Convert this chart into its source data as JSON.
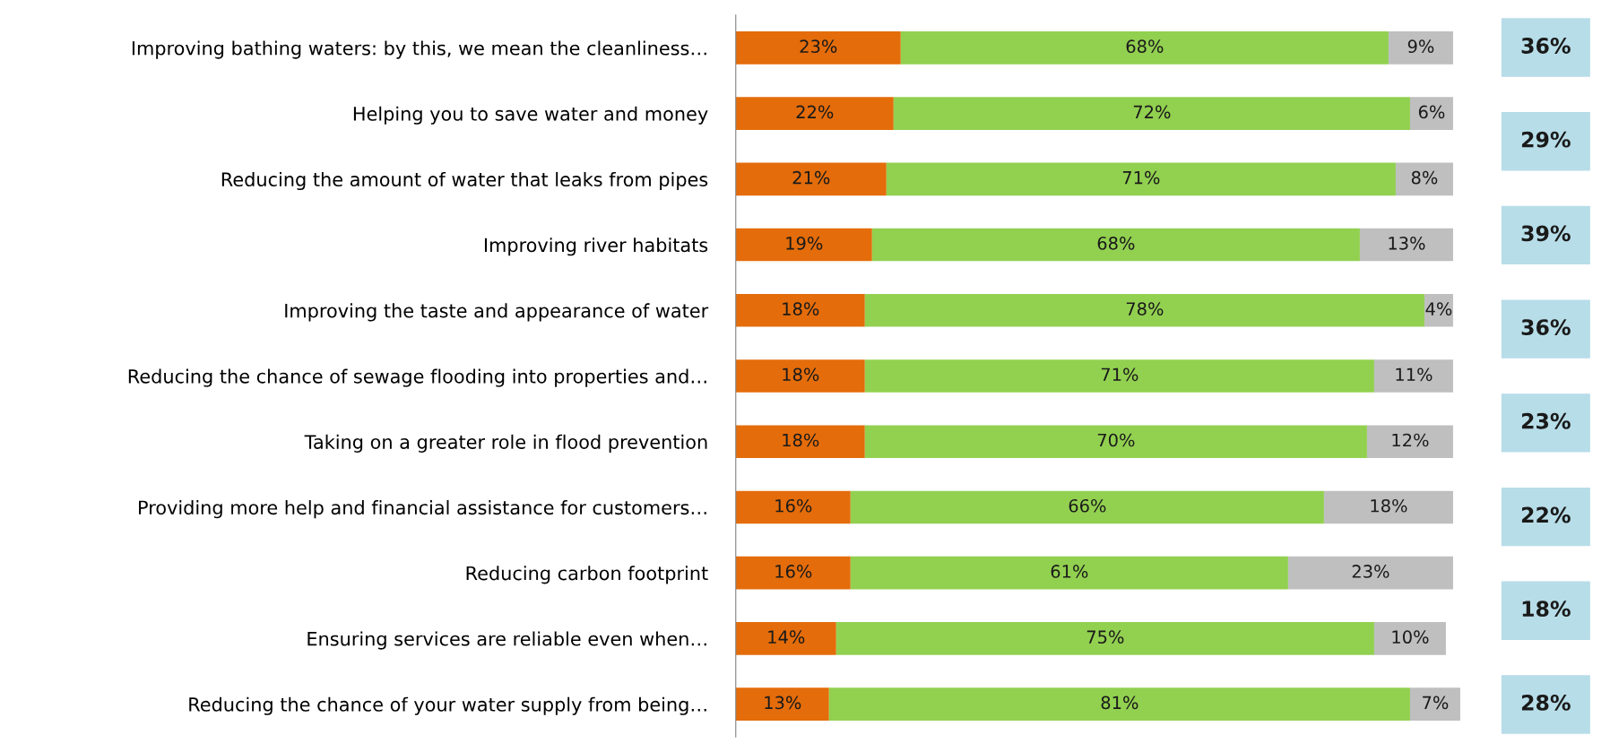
{
  "chart_data": {
    "type": "bar",
    "orientation": "horizontal",
    "stacked": true,
    "tick_labels": "y",
    "grid": false,
    "legend": false,
    "categories": [
      "Improving bathing waters: by this, we mean the cleanliness…",
      "Helping you to save water and money",
      "Reducing the amount of water that leaks from pipes",
      "Improving river habitats",
      "Improving the taste and appearance of water",
      "Reducing the chance of sewage flooding into properties and…",
      "Taking on a greater role in flood prevention",
      "Providing more help and financial assistance for customers…",
      "Reducing carbon footprint",
      "Ensuring services are reliable even when…",
      "Reducing the chance of your water supply from being…"
    ],
    "series": [
      {
        "color": "#e46c0a",
        "values": [
          23,
          22,
          21,
          19,
          18,
          18,
          18,
          16,
          16,
          14,
          13
        ],
        "value_labels": [
          "23%",
          "22%",
          "21%",
          "19%",
          "18%",
          "18%",
          "18%",
          "16%",
          "16%",
          "14%",
          "13%"
        ]
      },
      {
        "color": "#92d050",
        "values": [
          68,
          72,
          71,
          68,
          78,
          71,
          70,
          66,
          61,
          75,
          81
        ],
        "value_labels": [
          "68%",
          "72%",
          "71%",
          "68%",
          "78%",
          "71%",
          "70%",
          "66%",
          "61%",
          "75%",
          "81%"
        ]
      },
      {
        "color": "#bfbfbf",
        "values": [
          9,
          6,
          8,
          13,
          4,
          11,
          12,
          18,
          23,
          10,
          7
        ],
        "value_labels": [
          "9%",
          "6%",
          "8%",
          "13%",
          "4%",
          "11%",
          "12%",
          "18%",
          "23%",
          "10%",
          "7%"
        ]
      }
    ],
    "annotations": [
      "36%",
      "29%",
      "39%",
      "36%",
      "23%",
      "22%",
      "18%",
      "28%"
    ]
  }
}
